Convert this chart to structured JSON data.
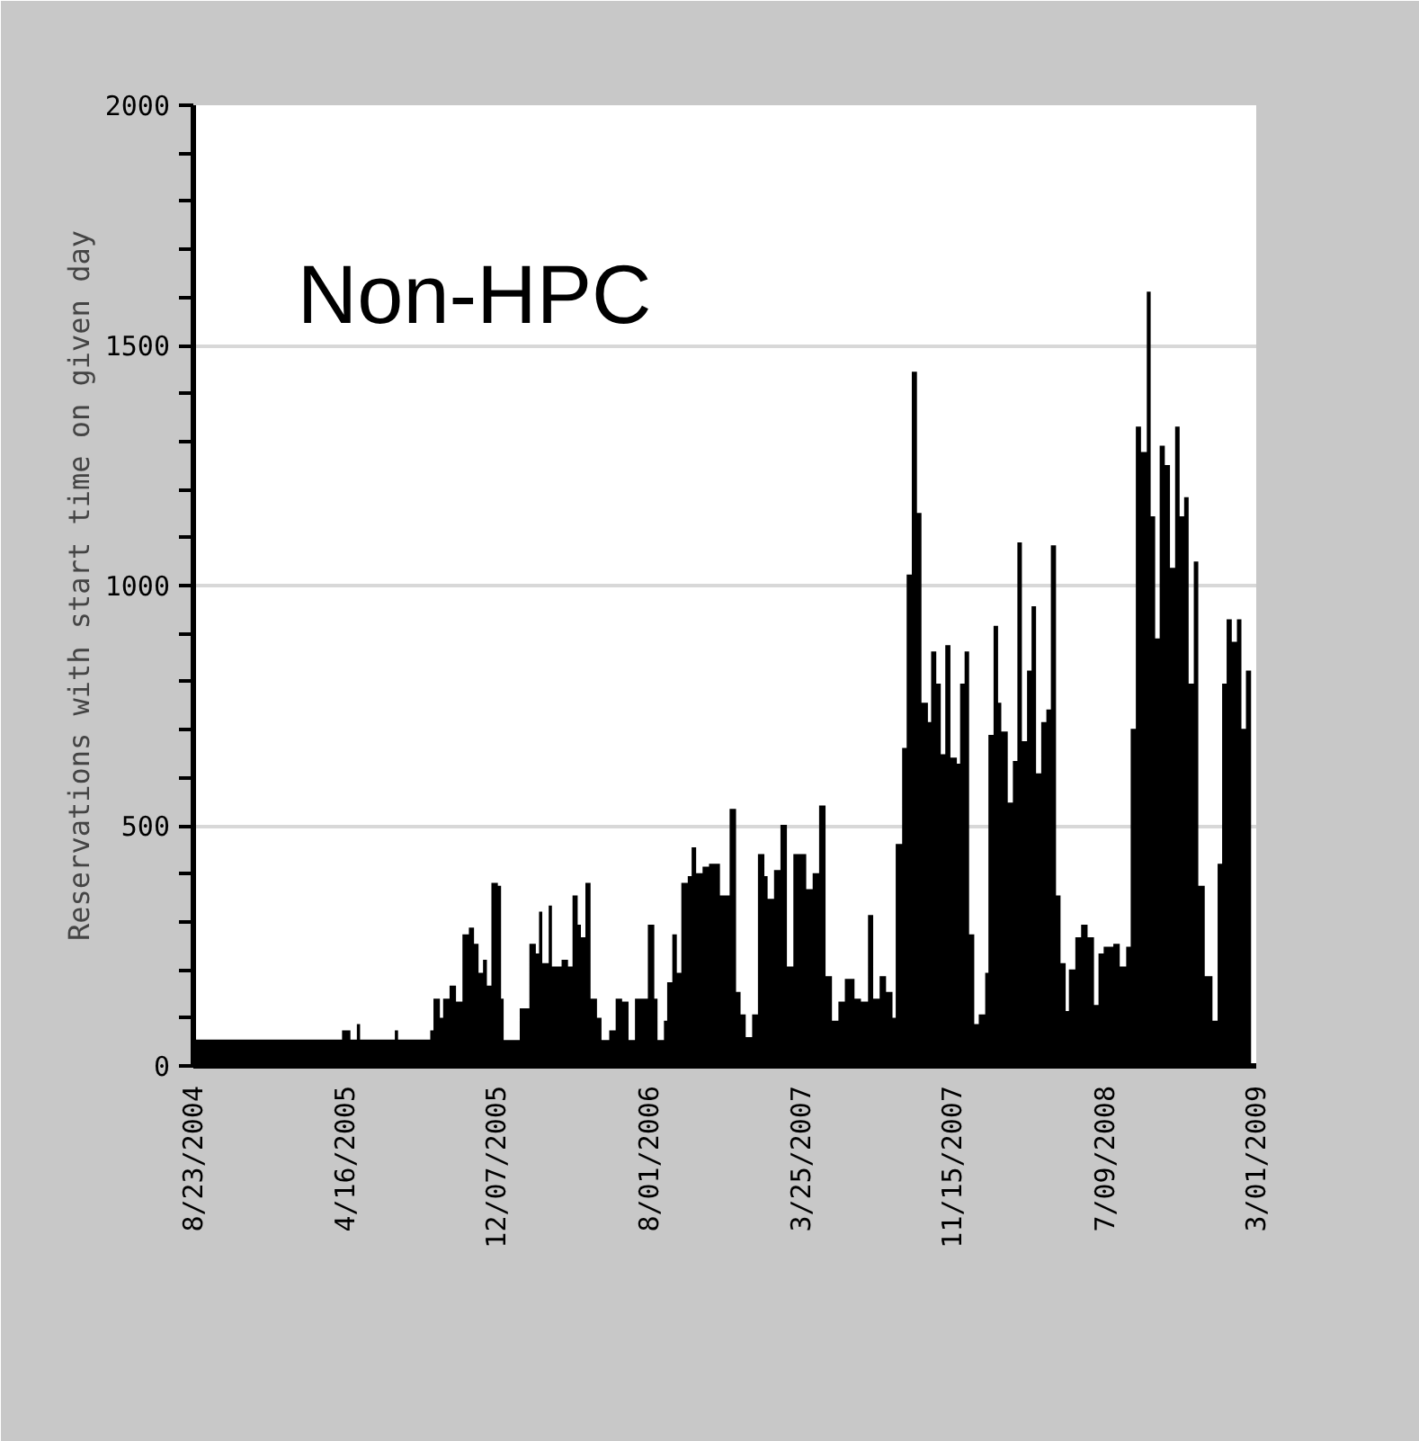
{
  "chart_data": {
    "type": "area",
    "title": "Non-HPC",
    "ylabel": "Reservations with start time on given day",
    "x": [
      "2004-08-23",
      "2005-04-07",
      "2005-04-11",
      "2005-04-24",
      "2005-05-04",
      "2005-05-09",
      "2005-07-02",
      "2005-07-07",
      "2005-08-21",
      "2005-08-26",
      "2005-08-31",
      "2005-09-10",
      "2005-09-15",
      "2005-09-25",
      "2005-10-05",
      "2005-10-15",
      "2005-10-25",
      "2005-11-02",
      "2005-11-09",
      "2005-11-16",
      "2005-11-22",
      "2005-11-29",
      "2005-12-09",
      "2005-12-14",
      "2005-12-18",
      "2006-01-02",
      "2006-01-12",
      "2006-01-27",
      "2006-02-06",
      "2006-02-11",
      "2006-02-16",
      "2006-02-26",
      "2006-03-03",
      "2006-03-18",
      "2006-03-28",
      "2006-04-04",
      "2006-04-12",
      "2006-04-17",
      "2006-04-24",
      "2006-05-02",
      "2006-05-12",
      "2006-05-19",
      "2006-05-31",
      "2006-06-10",
      "2006-06-20",
      "2006-06-30",
      "2006-07-10",
      "2006-07-20",
      "2006-07-30",
      "2006-08-09",
      "2006-08-14",
      "2006-08-24",
      "2006-08-29",
      "2006-09-06",
      "2006-09-13",
      "2006-09-20",
      "2006-09-30",
      "2006-10-06",
      "2006-10-13",
      "2006-10-23",
      "2006-11-02",
      "2006-11-19",
      "2006-12-04",
      "2006-12-14",
      "2006-12-21",
      "2006-12-29",
      "2007-01-08",
      "2007-01-17",
      "2007-01-27",
      "2007-02-01",
      "2007-02-11",
      "2007-02-21",
      "2007-03-03",
      "2007-03-13",
      "2007-03-28",
      "2007-04-02",
      "2007-04-12",
      "2007-04-22",
      "2007-05-02",
      "2007-05-12",
      "2007-05-22",
      "2007-06-01",
      "2007-06-16",
      "2007-06-26",
      "2007-07-07",
      "2007-07-15",
      "2007-07-25",
      "2007-08-04",
      "2007-08-14",
      "2007-08-19",
      "2007-08-29",
      "2007-09-05",
      "2007-09-13",
      "2007-09-21",
      "2007-09-28",
      "2007-10-08",
      "2007-10-13",
      "2007-10-21",
      "2007-10-28",
      "2007-11-04",
      "2007-11-12",
      "2007-11-22",
      "2007-11-27",
      "2007-12-04",
      "2007-12-11",
      "2007-12-19",
      "2007-12-26",
      "2008-01-05",
      "2008-01-10",
      "2008-01-18",
      "2008-01-25",
      "2008-01-30",
      "2008-02-09",
      "2008-02-17",
      "2008-02-24",
      "2008-03-02",
      "2008-03-10",
      "2008-03-17",
      "2008-03-24",
      "2008-04-01",
      "2008-04-09",
      "2008-04-16",
      "2008-04-24",
      "2008-05-01",
      "2008-05-09",
      "2008-05-14",
      "2008-05-24",
      "2008-06-02",
      "2008-06-12",
      "2008-06-22",
      "2008-06-29",
      "2008-07-07",
      "2008-07-22",
      "2008-08-01",
      "2008-08-11",
      "2008-08-18",
      "2008-08-26",
      "2008-09-03",
      "2008-09-12",
      "2008-09-18",
      "2008-09-25",
      "2008-10-02",
      "2008-10-10",
      "2008-10-18",
      "2008-10-26",
      "2008-11-02",
      "2008-11-09",
      "2008-11-16",
      "2008-11-24",
      "2008-12-01",
      "2008-12-11",
      "2008-12-23",
      "2008-12-31",
      "2009-01-07",
      "2009-01-14",
      "2009-01-22",
      "2009-01-30",
      "2009-02-06",
      "2009-02-13",
      "2009-02-21"
    ],
    "series": [
      {
        "color": "#000000",
        "values": [
          55,
          55,
          74,
          55,
          87,
          55,
          74,
          55,
          55,
          74,
          140,
          100,
          140,
          167,
          134,
          274,
          288,
          254,
          194,
          221,
          167,
          381,
          375,
          140,
          54,
          54,
          120,
          254,
          234,
          321,
          214,
          334,
          207,
          221,
          207,
          355,
          294,
          268,
          381,
          140,
          100,
          54,
          74,
          140,
          134,
          54,
          140,
          140,
          294,
          140,
          54,
          94,
          174,
          274,
          194,
          381,
          395,
          455,
          401,
          415,
          421,
          355,
          535,
          154,
          107,
          60,
          107,
          441,
          395,
          348,
          408,
          502,
          207,
          441,
          441,
          368,
          401,
          542,
          187,
          94,
          134,
          181,
          140,
          134,
          314,
          140,
          187,
          154,
          100,
          462,
          662,
          1023,
          1445,
          1151,
          756,
          716,
          863,
          796,
          649,
          876,
          642,
          629,
          796,
          863,
          274,
          87,
          107,
          194,
          689,
          916,
          756,
          696,
          548,
          635,
          1090,
          676,
          823,
          957,
          609,
          716,
          742,
          1084,
          355,
          214,
          114,
          201,
          268,
          294,
          268,
          127,
          234,
          248,
          254,
          207,
          248,
          702,
          1331,
          1278,
          1612,
          1144,
          890,
          1291,
          1251,
          1037,
          1331,
          1144,
          1184,
          796,
          1050,
          375,
          187,
          94,
          421,
          796,
          930,
          883,
          930,
          702,
          823,
          248
        ]
      }
    ],
    "xlim": [
      "2004-08-23",
      "2009-03-01"
    ],
    "xticks": [
      {
        "value": "2004-08-23",
        "label": "8/23/2004"
      },
      {
        "value": "2005-04-16",
        "label": "4/16/2005"
      },
      {
        "value": "2005-12-07",
        "label": "12/07/2005"
      },
      {
        "value": "2006-08-01",
        "label": "8/01/2006"
      },
      {
        "value": "2007-03-25",
        "label": "3/25/2007"
      },
      {
        "value": "2007-11-15",
        "label": "11/15/2007"
      },
      {
        "value": "2008-07-09",
        "label": "7/09/2008"
      },
      {
        "value": "2009-03-01",
        "label": "3/01/2009"
      }
    ],
    "ylim": [
      0,
      2000
    ],
    "yticks": [
      0,
      {
        "value": 100,
        "label": null
      },
      {
        "value": 200,
        "label": null
      },
      {
        "value": 300,
        "label": null
      },
      {
        "value": 400,
        "label": null
      },
      500,
      {
        "value": 600,
        "label": null
      },
      {
        "value": 700,
        "label": null
      },
      {
        "value": 800,
        "label": null
      },
      {
        "value": 900,
        "label": null
      },
      1000,
      {
        "value": 1100,
        "label": null
      },
      {
        "value": 1200,
        "label": null
      },
      {
        "value": 1300,
        "label": null
      },
      {
        "value": 1400,
        "label": null
      },
      1500,
      {
        "value": 1600,
        "label": null
      },
      {
        "value": 1700,
        "label": null
      },
      {
        "value": 1800,
        "label": null
      },
      {
        "value": 1900,
        "label": null
      },
      2000
    ],
    "grid": "y"
  }
}
